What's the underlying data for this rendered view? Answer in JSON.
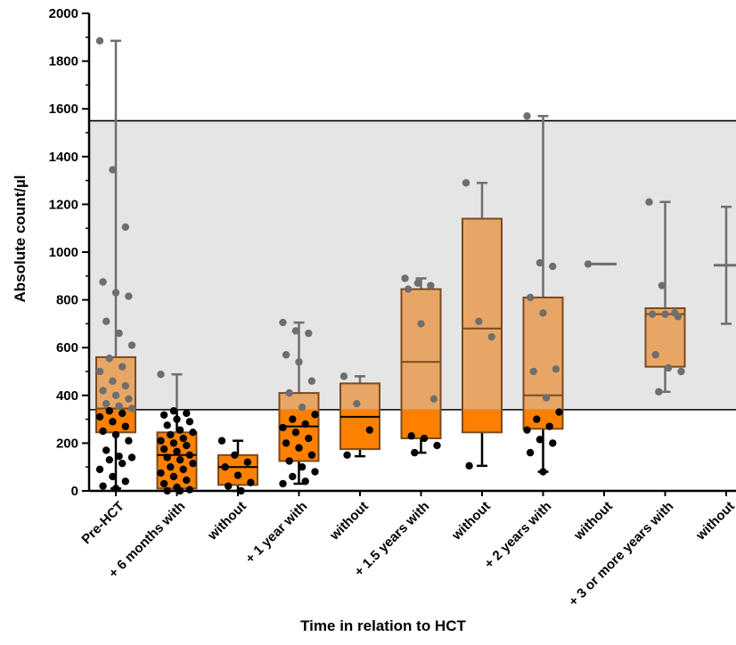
{
  "chart_data": {
    "type": "box",
    "xlabel": "Time in relation to HCT",
    "ylabel": "Absolute count/µl",
    "ylim": [
      0,
      2000
    ],
    "yticks": [
      0,
      200,
      400,
      600,
      800,
      1000,
      1200,
      1400,
      1600,
      1800,
      2000
    ],
    "reference_band": [
      340,
      1550
    ],
    "categories": [
      "Pre-HCT",
      "+ 6 months with",
      "without",
      "+ 1 year with",
      "without",
      "+ 1.5 years with",
      "without",
      "+ 2 years with",
      "without",
      "+ 3 or more years with",
      "without"
    ],
    "groups": [
      {
        "min": 10,
        "q1": 245,
        "median": 345,
        "q3": 560,
        "max": 1885,
        "points": [
          1885,
          1345,
          1105,
          875,
          830,
          815,
          710,
          660,
          610,
          555,
          520,
          500,
          460,
          440,
          420,
          400,
          385,
          365,
          355,
          345,
          335,
          325,
          310,
          290,
          270,
          250,
          235,
          210,
          170,
          145,
          140,
          130,
          115,
          90,
          60,
          40,
          20,
          10
        ]
      },
      {
        "min": 0,
        "q1": 10,
        "median": 150,
        "q3": 245,
        "max": 488,
        "points": [
          488,
          335,
          325,
          318,
          300,
          290,
          275,
          255,
          245,
          235,
          220,
          210,
          200,
          190,
          175,
          165,
          150,
          140,
          130,
          115,
          100,
          90,
          75,
          60,
          45,
          30,
          15,
          5,
          0,
          0
        ]
      },
      {
        "min": 0,
        "q1": 25,
        "median": 100,
        "q3": 150,
        "max": 210,
        "points": [
          210,
          150,
          120,
          100,
          65,
          35,
          20,
          0
        ]
      },
      {
        "min": 30,
        "q1": 125,
        "median": 270,
        "q3": 410,
        "max": 705,
        "points": [
          705,
          670,
          660,
          570,
          540,
          460,
          410,
          350,
          320,
          300,
          280,
          265,
          245,
          220,
          200,
          180,
          150,
          125,
          100,
          80,
          60,
          40,
          30
        ]
      },
      {
        "min": 145,
        "q1": 175,
        "median": 310,
        "q3": 450,
        "max": 480,
        "points": [
          480,
          365,
          255,
          150
        ]
      },
      {
        "min": 160,
        "q1": 220,
        "median": 540,
        "q3": 845,
        "max": 890,
        "points": [
          890,
          870,
          860,
          845,
          700,
          385,
          230,
          220,
          190,
          160
        ]
      },
      {
        "min": 105,
        "q1": 245,
        "median": 680,
        "q3": 1140,
        "max": 1290,
        "points": [
          1290,
          710,
          645,
          105
        ]
      },
      {
        "min": 80,
        "q1": 260,
        "median": 400,
        "q3": 810,
        "max": 1570,
        "points": [
          1570,
          955,
          940,
          810,
          745,
          510,
          500,
          390,
          330,
          300,
          270,
          255,
          215,
          200,
          160,
          80
        ]
      },
      {
        "min": 950,
        "q1": 950,
        "median": 950,
        "q3": 950,
        "max": 950,
        "points": [
          950
        ]
      },
      {
        "min": 415,
        "q1": 520,
        "median": 740,
        "q3": 765,
        "max": 1210,
        "points": [
          1210,
          860,
          745,
          740,
          740,
          730,
          570,
          515,
          500,
          415
        ]
      },
      {
        "min": 700,
        "q1": 945,
        "median": 945,
        "q3": 945,
        "max": 1190,
        "points": []
      }
    ],
    "colors": {
      "upper_box": "#e8a666",
      "lower_box": "#ff8000",
      "box_stroke": "#7a4a1e",
      "band": "#e5e5e5",
      "point_above": "#6e6e6e",
      "point_below": "#000000",
      "whisker_above": "#6e6e6e",
      "whisker_below": "#000000"
    }
  }
}
